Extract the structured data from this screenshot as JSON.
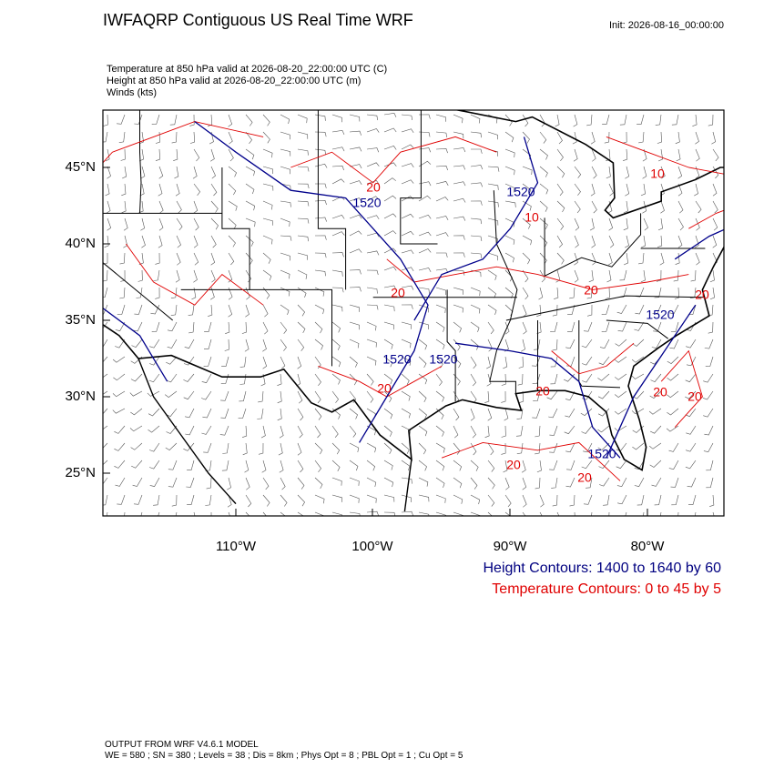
{
  "header": {
    "title": "IWFAQRP Contiguous US Real Time WRF",
    "init": "Init: 2026-08-16_00:00:00",
    "fields": [
      "Temperature at 850 hPa valid at 2026-08-20_22:00:00 UTC   (C)",
      "Height at 850 hPa valid at 2026-08-20_22:00:00 UTC   (m)",
      "Winds   (kts)"
    ]
  },
  "map": {
    "lat_labels": [
      "45°N",
      "40°N",
      "35°N",
      "30°N",
      "25°N"
    ],
    "lon_labels": [
      "110°W",
      "100°W",
      "90°W",
      "80°W"
    ],
    "temperature_labels": [
      "20",
      "20",
      "10",
      "10",
      "20",
      "20",
      "20",
      "20",
      "20",
      "20",
      "20",
      "20"
    ],
    "height_labels": [
      "1520",
      "1520",
      "1520",
      "1520",
      "1520",
      "1520"
    ]
  },
  "legend": {
    "height": "Height Contours: 1400 to 1640 by 60",
    "temperature": "Temperature Contours: 0 to 45 by 5"
  },
  "footer": {
    "model": "OUTPUT FROM WRF V4.6.1 MODEL",
    "settings": "WE = 580 ; SN = 380 ; Levels = 38 ; Dis = 8km ; Phys Opt = 8 ; PBL Opt = 1 ; Cu Opt = 5"
  }
}
